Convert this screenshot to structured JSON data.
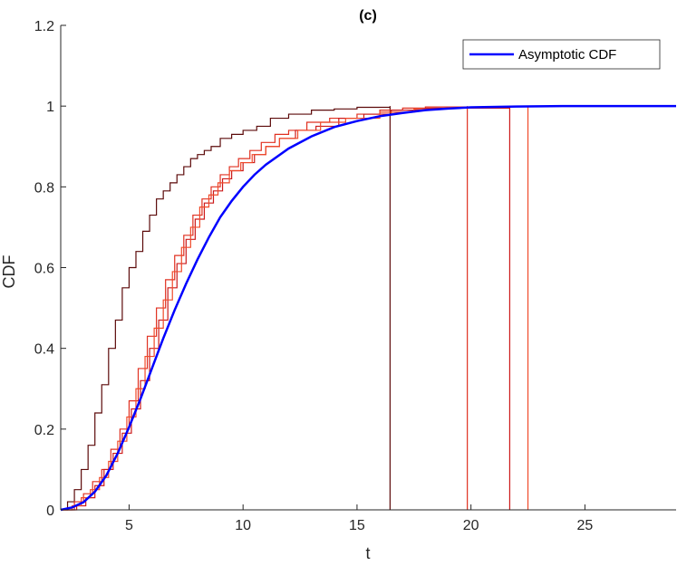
{
  "chart_data": {
    "type": "line",
    "title": "(c)",
    "xlabel": "t",
    "ylabel": "CDF",
    "xlim": [
      2,
      29
    ],
    "ylim": [
      0,
      1.2
    ],
    "xticks": [
      5,
      10,
      15,
      20,
      25
    ],
    "xtick_labels": [
      "5",
      "10",
      "15",
      "20",
      "25"
    ],
    "yticks": [
      0,
      0.2,
      0.4,
      0.6,
      0.8,
      1,
      1.2
    ],
    "ytick_labels": [
      "0",
      "0.2",
      "0.4",
      "0.6",
      "0.8",
      "1",
      "1.2"
    ],
    "grid": false,
    "legend_position": "top-right",
    "series": [
      {
        "name": "Asymptotic CDF",
        "style": "smooth",
        "color": "#0000ff",
        "x": [
          2,
          2.5,
          3,
          3.5,
          4,
          4.5,
          5,
          5.5,
          6,
          6.5,
          7,
          7.5,
          8,
          8.5,
          9,
          9.5,
          10,
          10.5,
          11,
          12,
          13,
          14,
          15,
          16,
          17,
          18,
          19,
          20,
          22,
          24,
          26,
          29
        ],
        "y": [
          0.0,
          0.006,
          0.019,
          0.045,
          0.085,
          0.14,
          0.205,
          0.275,
          0.35,
          0.425,
          0.495,
          0.56,
          0.62,
          0.675,
          0.725,
          0.765,
          0.8,
          0.83,
          0.855,
          0.895,
          0.925,
          0.948,
          0.963,
          0.975,
          0.983,
          0.99,
          0.994,
          0.997,
          0.999,
          1.0,
          1.0,
          1.0
        ]
      },
      {
        "style": "step",
        "color": "#5c0a0a",
        "x": [
          2,
          2.3,
          2.6,
          2.9,
          3.2,
          3.5,
          3.8,
          4.1,
          4.4,
          4.7,
          5.0,
          5.3,
          5.6,
          5.9,
          6.2,
          6.5,
          6.8,
          7.1,
          7.4,
          7.7,
          8.0,
          8.3,
          8.6,
          9.0,
          9.5,
          10.0,
          10.6,
          11.2,
          12.0,
          13.0,
          14.0,
          15.0,
          16.45
        ],
        "y": [
          0.0,
          0.02,
          0.05,
          0.1,
          0.16,
          0.24,
          0.31,
          0.4,
          0.47,
          0.55,
          0.6,
          0.64,
          0.69,
          0.73,
          0.77,
          0.79,
          0.81,
          0.83,
          0.85,
          0.87,
          0.88,
          0.89,
          0.9,
          0.92,
          0.93,
          0.94,
          0.95,
          0.97,
          0.98,
          0.99,
          0.993,
          0.997,
          1.0
        ]
      },
      {
        "style": "step",
        "color": "#e03020",
        "x": [
          2,
          2.6,
          3.0,
          3.4,
          3.8,
          4.2,
          4.6,
          5.0,
          5.4,
          5.8,
          6.2,
          6.6,
          7.0,
          7.4,
          7.8,
          8.2,
          8.6,
          9.0,
          9.4,
          9.8,
          10.3,
          10.8,
          11.4,
          12.0,
          12.8,
          13.8,
          15.0,
          16.0,
          17.0,
          18.0,
          19.84
        ],
        "y": [
          0.0,
          0.02,
          0.04,
          0.07,
          0.1,
          0.15,
          0.2,
          0.27,
          0.35,
          0.43,
          0.5,
          0.57,
          0.63,
          0.68,
          0.73,
          0.77,
          0.8,
          0.83,
          0.85,
          0.87,
          0.89,
          0.91,
          0.93,
          0.94,
          0.96,
          0.97,
          0.98,
          0.99,
          0.995,
          0.998,
          1.0
        ]
      },
      {
        "style": "step",
        "color": "#cc1a1a",
        "x": [
          2,
          2.7,
          3.1,
          3.5,
          3.9,
          4.3,
          4.7,
          5.1,
          5.5,
          5.9,
          6.3,
          6.7,
          7.1,
          7.5,
          7.9,
          8.3,
          8.7,
          9.1,
          9.5,
          10.0,
          10.5,
          11.0,
          11.6,
          12.3,
          13.2,
          14.2,
          15.3,
          16.5,
          18.0,
          21.7
        ],
        "y": [
          0.0,
          0.01,
          0.03,
          0.06,
          0.1,
          0.14,
          0.19,
          0.25,
          0.32,
          0.4,
          0.47,
          0.55,
          0.61,
          0.67,
          0.72,
          0.76,
          0.79,
          0.82,
          0.84,
          0.86,
          0.88,
          0.9,
          0.92,
          0.94,
          0.95,
          0.97,
          0.98,
          0.99,
          0.995,
          1.0
        ]
      },
      {
        "style": "step",
        "color": "#f04a2a",
        "x": [
          2,
          2.5,
          2.9,
          3.3,
          3.7,
          4.1,
          4.5,
          4.9,
          5.3,
          5.7,
          6.1,
          6.5,
          6.9,
          7.3,
          7.7,
          8.1,
          8.5,
          8.9,
          9.4,
          9.9,
          10.4,
          11.0,
          11.6,
          12.4,
          13.4,
          14.5,
          16.0,
          17.5,
          19.0,
          20.5,
          22.5
        ],
        "y": [
          0.0,
          0.01,
          0.03,
          0.05,
          0.08,
          0.12,
          0.17,
          0.23,
          0.3,
          0.38,
          0.45,
          0.52,
          0.59,
          0.65,
          0.7,
          0.75,
          0.78,
          0.81,
          0.84,
          0.86,
          0.88,
          0.9,
          0.92,
          0.94,
          0.96,
          0.97,
          0.985,
          0.993,
          0.997,
          0.999,
          1.0
        ]
      }
    ]
  }
}
